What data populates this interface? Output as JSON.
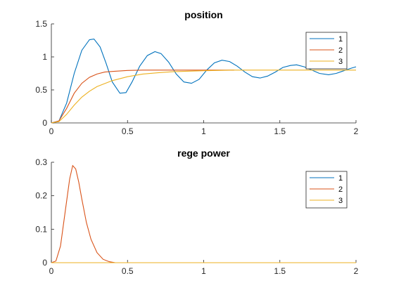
{
  "chart_data": [
    {
      "type": "line",
      "title": "position",
      "xlim": [
        0,
        2
      ],
      "ylim": [
        0,
        1.5
      ],
      "xticks": [
        0,
        0.5,
        1,
        1.5,
        2
      ],
      "yticks": [
        0,
        0.5,
        1,
        1.5
      ],
      "xtick_labels": [
        "0",
        "0.5",
        "1",
        "1.5",
        "2"
      ],
      "ytick_labels": [
        "0",
        "0.5",
        "1",
        "1.5"
      ],
      "legend_position": "top-right",
      "series": [
        {
          "name": "1",
          "color": "#0072BD",
          "x": [
            0,
            0.05,
            0.1,
            0.15,
            0.2,
            0.25,
            0.28,
            0.32,
            0.36,
            0.4,
            0.45,
            0.49,
            0.53,
            0.58,
            0.63,
            0.68,
            0.72,
            0.77,
            0.82,
            0.87,
            0.92,
            0.97,
            1.02,
            1.07,
            1.12,
            1.17,
            1.22,
            1.27,
            1.32,
            1.37,
            1.42,
            1.47,
            1.52,
            1.57,
            1.61,
            1.66,
            1.71,
            1.76,
            1.82,
            1.87,
            1.92,
            1.97,
            2.0
          ],
          "y": [
            0,
            0.03,
            0.3,
            0.75,
            1.1,
            1.26,
            1.27,
            1.15,
            0.9,
            0.62,
            0.45,
            0.46,
            0.62,
            0.86,
            1.02,
            1.08,
            1.05,
            0.92,
            0.74,
            0.62,
            0.6,
            0.66,
            0.8,
            0.91,
            0.95,
            0.93,
            0.86,
            0.77,
            0.7,
            0.68,
            0.71,
            0.77,
            0.84,
            0.87,
            0.88,
            0.85,
            0.8,
            0.75,
            0.73,
            0.75,
            0.79,
            0.83,
            0.85
          ]
        },
        {
          "name": "2",
          "color": "#D95319",
          "x": [
            0,
            0.05,
            0.1,
            0.15,
            0.2,
            0.25,
            0.3,
            0.35,
            0.4,
            0.5,
            0.6,
            0.8,
            1.0,
            1.2
          ],
          "y": [
            0,
            0.03,
            0.22,
            0.45,
            0.6,
            0.69,
            0.74,
            0.77,
            0.78,
            0.795,
            0.8,
            0.8,
            0.8,
            0.8
          ]
        },
        {
          "name": "3",
          "color": "#EDB120",
          "x": [
            0,
            0.05,
            0.1,
            0.15,
            0.2,
            0.25,
            0.3,
            0.4,
            0.5,
            0.6,
            0.7,
            0.8,
            1.0,
            1.2,
            1.5,
            2.0
          ],
          "y": [
            0,
            0.02,
            0.13,
            0.27,
            0.39,
            0.48,
            0.55,
            0.64,
            0.7,
            0.74,
            0.76,
            0.775,
            0.79,
            0.8,
            0.8,
            0.8
          ]
        }
      ]
    },
    {
      "type": "line",
      "title": "rege power",
      "xlim": [
        0,
        2
      ],
      "ylim": [
        0,
        0.3
      ],
      "xticks": [
        0,
        0.5,
        1,
        1.5,
        2
      ],
      "yticks": [
        0,
        0.1,
        0.2,
        0.3
      ],
      "xtick_labels": [
        "0",
        "0.5",
        "1",
        "1.5",
        "2"
      ],
      "ytick_labels": [
        "0",
        "0.1",
        "0.2",
        "0.3"
      ],
      "legend_position": "top-right",
      "series": [
        {
          "name": "1",
          "color": "#0072BD",
          "x": [
            0,
            2
          ],
          "y": [
            0,
            0
          ]
        },
        {
          "name": "2",
          "color": "#D95319",
          "x": [
            0,
            0.03,
            0.06,
            0.09,
            0.12,
            0.14,
            0.16,
            0.18,
            0.2,
            0.23,
            0.26,
            0.3,
            0.34,
            0.38,
            0.42,
            2.0
          ],
          "y": [
            0,
            0.005,
            0.05,
            0.15,
            0.25,
            0.29,
            0.28,
            0.24,
            0.19,
            0.12,
            0.07,
            0.03,
            0.01,
            0.003,
            0,
            0
          ]
        },
        {
          "name": "3",
          "color": "#EDB120",
          "x": [
            0,
            2
          ],
          "y": [
            0,
            0
          ]
        }
      ]
    }
  ]
}
